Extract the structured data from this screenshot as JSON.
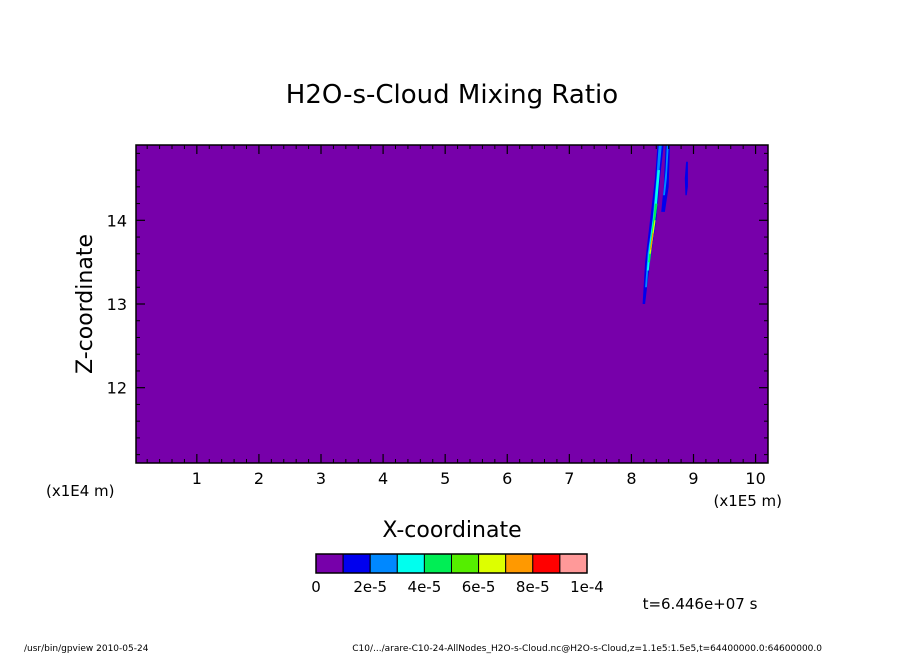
{
  "chart_data": {
    "type": "heatmap",
    "title": "H2O-s-Cloud Mixing Ratio",
    "xlabel": "X-coordinate",
    "ylabel": "Z-coordinate",
    "x_unit_left": "(x1E4 m)",
    "x_unit_right": "(x1E5 m)",
    "xlim": [
      0.02,
      10.2
    ],
    "ylim": [
      11.1,
      14.9
    ],
    "x_ticks": [
      1,
      2,
      3,
      4,
      5,
      6,
      7,
      8,
      9,
      10
    ],
    "x_tick_labels": [
      "1",
      "2",
      "3",
      "4",
      "5",
      "6",
      "7",
      "8",
      "9",
      "10"
    ],
    "y_ticks": [
      12,
      13,
      14
    ],
    "y_tick_labels": [
      "12",
      "13",
      "14"
    ],
    "background_level_color": "#7700aa",
    "colorbar": {
      "colors": [
        "#7700aa",
        "#0000ee",
        "#0088ff",
        "#00ffee",
        "#00ee55",
        "#55ee00",
        "#ddff00",
        "#ff9900",
        "#ff0000",
        "#ff9999"
      ],
      "labels": [
        "0",
        "2e-5",
        "4e-5",
        "6e-5",
        "8e-5",
        "1e-4"
      ]
    },
    "plumes": [
      {
        "level": 1,
        "points": [
          [
            8.18,
            13.0
          ],
          [
            8.22,
            13.5
          ],
          [
            8.3,
            14.0
          ],
          [
            8.38,
            14.5
          ],
          [
            8.42,
            14.9
          ],
          [
            8.52,
            14.9
          ],
          [
            8.46,
            14.5
          ],
          [
            8.4,
            14.0
          ],
          [
            8.3,
            13.5
          ],
          [
            8.22,
            13.0
          ]
        ]
      },
      {
        "level": 2,
        "points": [
          [
            8.22,
            13.2
          ],
          [
            8.26,
            13.6
          ],
          [
            8.34,
            14.0
          ],
          [
            8.4,
            14.5
          ],
          [
            8.44,
            14.9
          ],
          [
            8.49,
            14.9
          ],
          [
            8.44,
            14.5
          ],
          [
            8.37,
            14.0
          ],
          [
            8.29,
            13.6
          ],
          [
            8.25,
            13.2
          ]
        ]
      },
      {
        "level": 3,
        "points": [
          [
            8.25,
            13.4
          ],
          [
            8.29,
            13.7
          ],
          [
            8.36,
            14.1
          ],
          [
            8.42,
            14.6
          ],
          [
            8.46,
            14.6
          ],
          [
            8.4,
            14.1
          ],
          [
            8.32,
            13.7
          ],
          [
            8.28,
            13.4
          ]
        ]
      },
      {
        "level": 4,
        "points": [
          [
            8.27,
            13.5
          ],
          [
            8.32,
            13.8
          ],
          [
            8.38,
            14.2
          ],
          [
            8.42,
            14.2
          ],
          [
            8.35,
            13.8
          ],
          [
            8.3,
            13.5
          ]
        ]
      },
      {
        "level": 6,
        "points": [
          [
            8.29,
            13.6
          ],
          [
            8.33,
            13.8
          ],
          [
            8.37,
            14.0
          ],
          [
            8.39,
            14.0
          ],
          [
            8.35,
            13.8
          ],
          [
            8.31,
            13.6
          ]
        ]
      },
      {
        "level": 7,
        "points": [
          [
            8.3,
            13.65
          ],
          [
            8.34,
            13.85
          ],
          [
            8.36,
            13.85
          ],
          [
            8.32,
            13.65
          ]
        ]
      },
      {
        "level": 1,
        "points": [
          [
            8.48,
            14.1
          ],
          [
            8.52,
            14.4
          ],
          [
            8.55,
            14.9
          ],
          [
            8.62,
            14.9
          ],
          [
            8.6,
            14.4
          ],
          [
            8.54,
            14.1
          ]
        ]
      },
      {
        "level": 2,
        "points": [
          [
            8.51,
            14.3
          ],
          [
            8.55,
            14.6
          ],
          [
            8.57,
            14.9
          ],
          [
            8.6,
            14.9
          ],
          [
            8.57,
            14.5
          ],
          [
            8.54,
            14.3
          ]
        ]
      },
      {
        "level": 1,
        "points": [
          [
            8.87,
            14.3
          ],
          [
            8.86,
            14.5
          ],
          [
            8.88,
            14.7
          ],
          [
            8.91,
            14.7
          ],
          [
            8.91,
            14.4
          ],
          [
            8.89,
            14.3
          ]
        ]
      }
    ]
  },
  "time_label": "t=6.446e+07 s",
  "footer": {
    "left": "/usr/bin/gpview  2010-05-24",
    "right": "C10/.../arare-C10-24-AllNodes_H2O-s-Cloud.nc@H2O-s-Cloud,z=1.1e5:1.5e5,t=64400000.0:64600000.0"
  }
}
